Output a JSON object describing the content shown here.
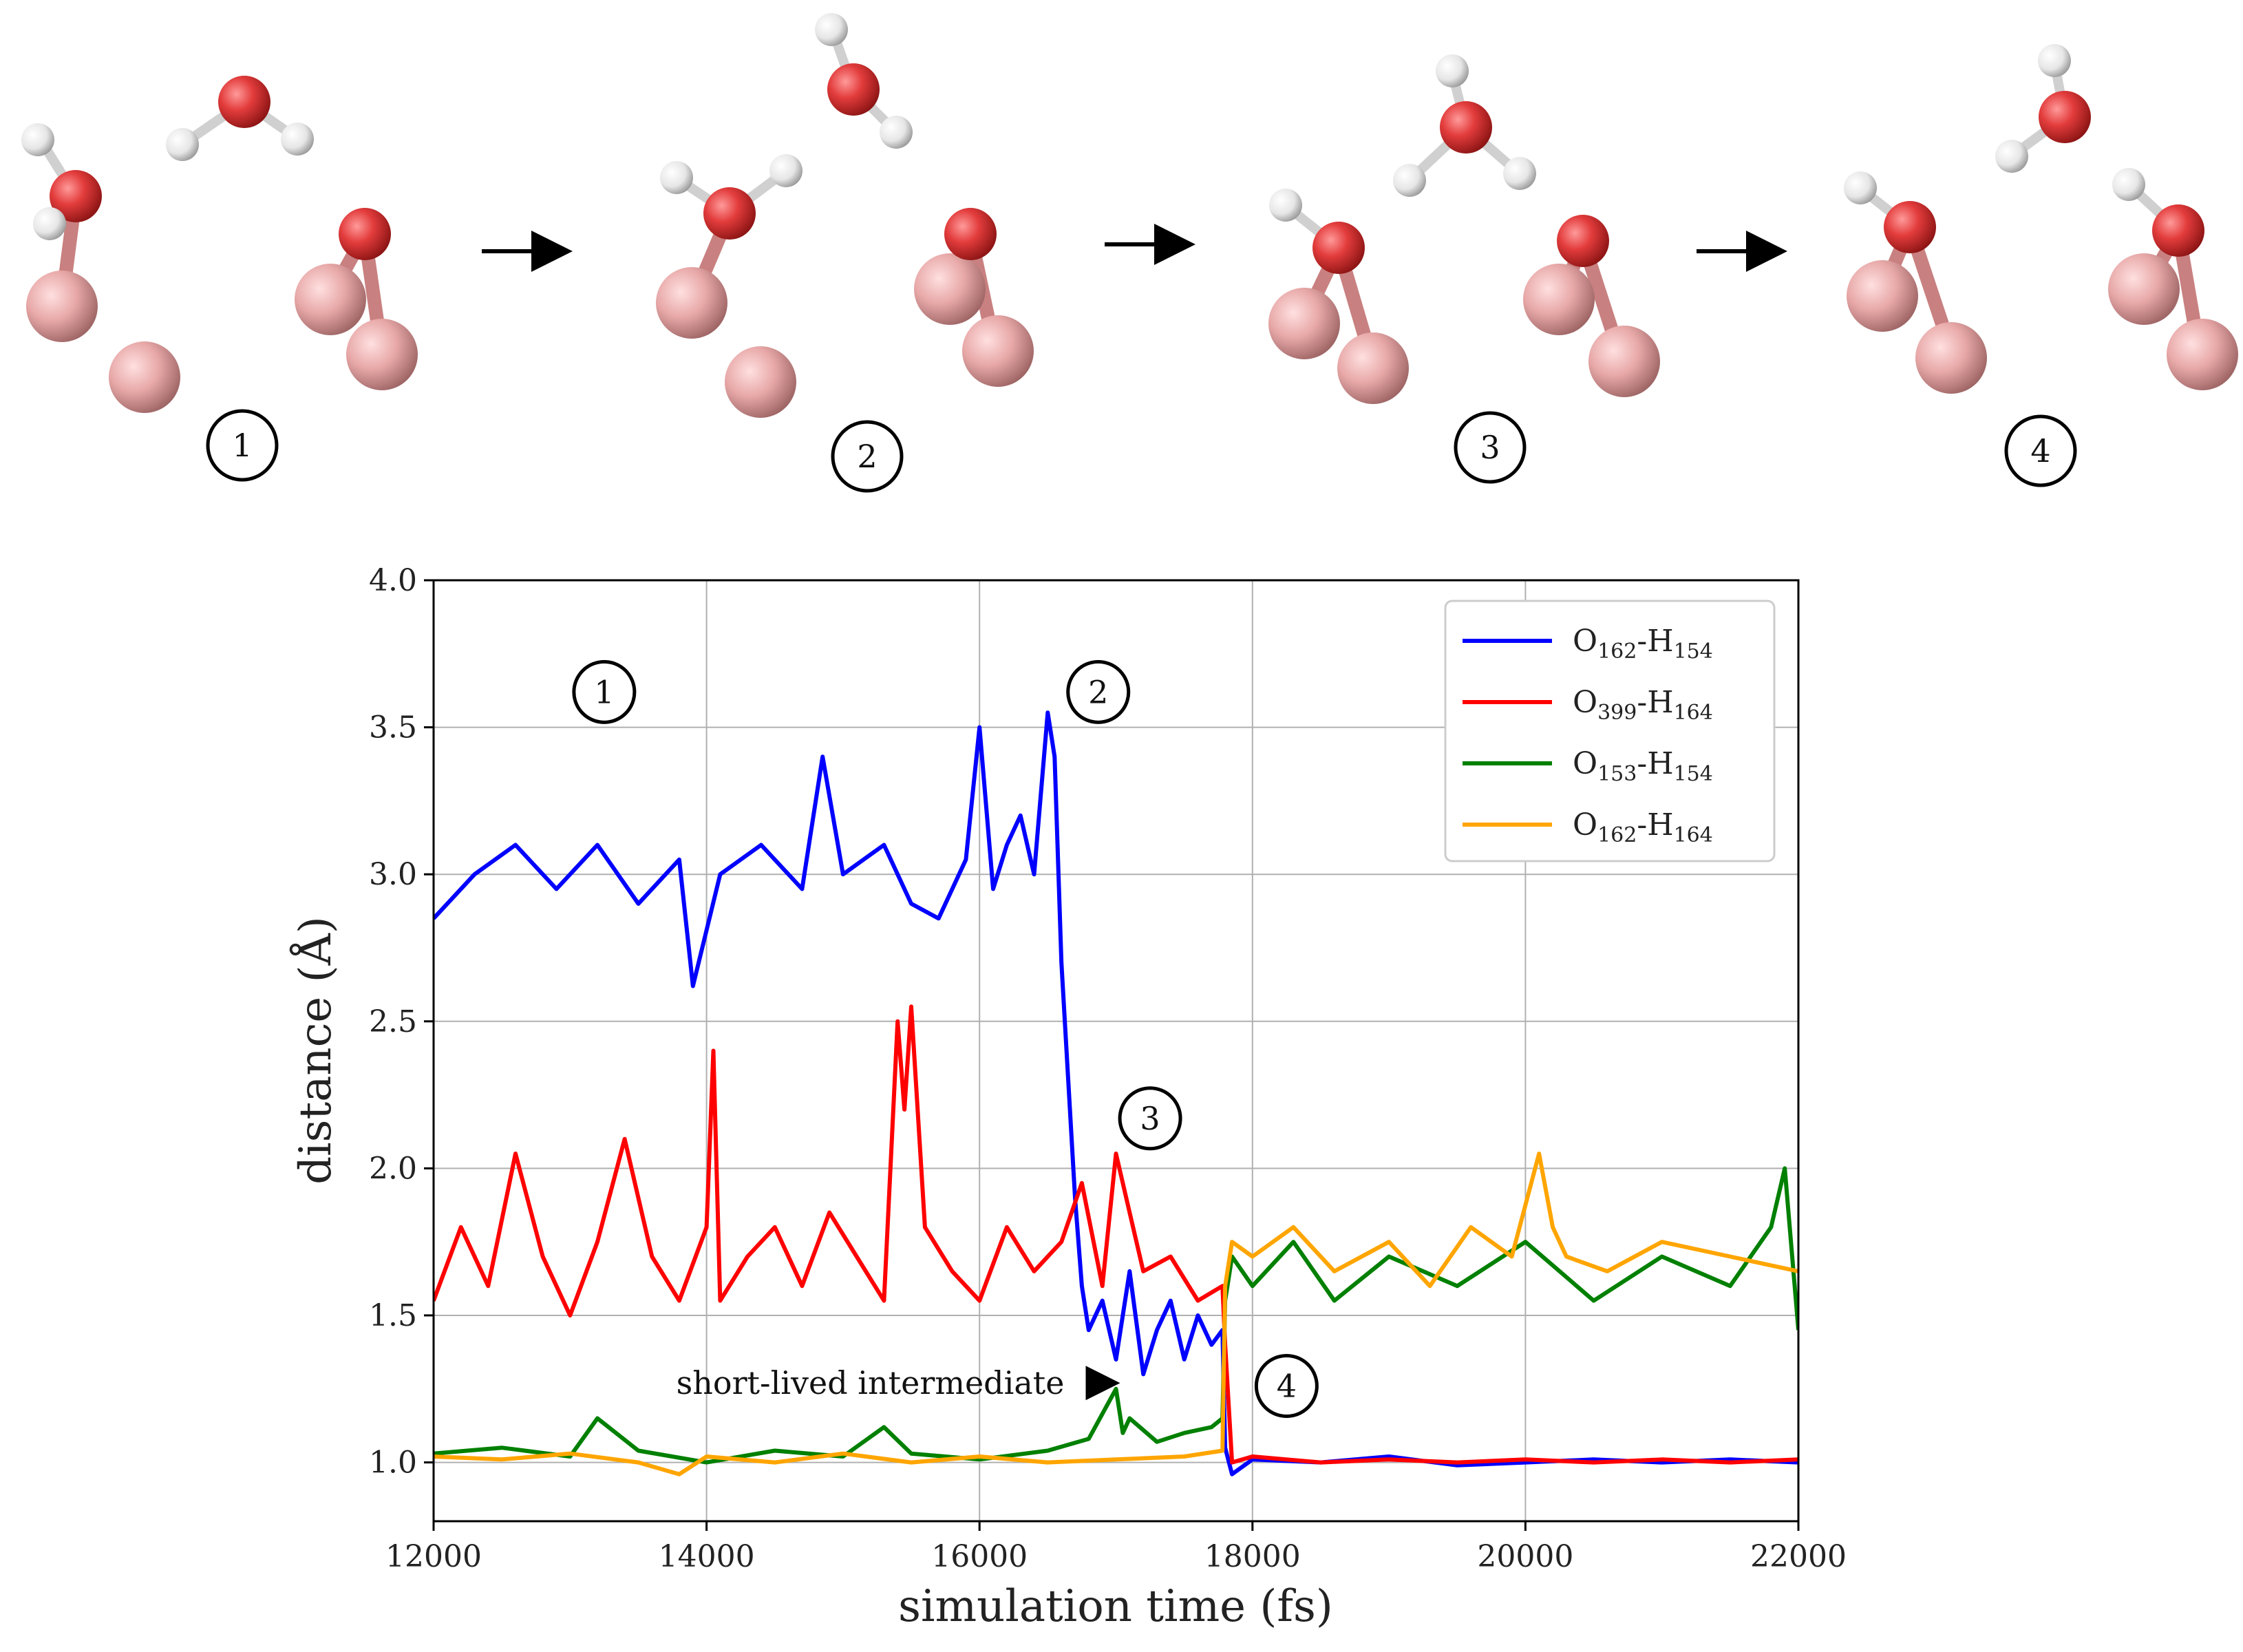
{
  "chart_data": {
    "type": "line",
    "xlabel": "simulation time (fs)",
    "ylabel": "distance (Å)",
    "xlim": [
      12000,
      22000
    ],
    "ylim": [
      0.8,
      4.0
    ],
    "xticks": [
      12000,
      14000,
      16000,
      18000,
      20000,
      22000
    ],
    "yticks": [
      1.0,
      1.5,
      2.0,
      2.5,
      3.0,
      3.5,
      4.0
    ],
    "xtick_labels": [
      "12000",
      "14000",
      "16000",
      "18000",
      "20000",
      "22000"
    ],
    "ytick_labels": [
      "1.0",
      "1.5",
      "2.0",
      "2.5",
      "3.0",
      "3.5",
      "4.0"
    ],
    "grid": true,
    "legend_position": "top-right",
    "series": [
      {
        "name": "O162-H154",
        "label_main": "O",
        "label_sub1": "162",
        "label_mid": "-H",
        "label_sub2": "154",
        "color": "#0000ff",
        "x": [
          12000,
          12300,
          12600,
          12900,
          13200,
          13500,
          13800,
          13900,
          14100,
          14400,
          14700,
          14850,
          15000,
          15300,
          15500,
          15700,
          15900,
          16000,
          16100,
          16200,
          16300,
          16400,
          16500,
          16550,
          16600,
          16650,
          16700,
          16750,
          16800,
          16900,
          17000,
          17100,
          17200,
          17300,
          17400,
          17500,
          17600,
          17700,
          17780,
          17800,
          17850,
          18000,
          18500,
          19000,
          19500,
          20000,
          20500,
          21000,
          21500,
          22000
        ],
        "y": [
          2.85,
          3.0,
          3.1,
          2.95,
          3.1,
          2.9,
          3.05,
          2.62,
          3.0,
          3.1,
          2.95,
          3.4,
          3.0,
          3.1,
          2.9,
          2.85,
          3.05,
          3.5,
          2.95,
          3.1,
          3.2,
          3.0,
          3.55,
          3.4,
          2.7,
          2.3,
          1.9,
          1.6,
          1.45,
          1.55,
          1.35,
          1.65,
          1.3,
          1.45,
          1.55,
          1.35,
          1.5,
          1.4,
          1.45,
          1.05,
          0.96,
          1.01,
          1.0,
          1.02,
          0.99,
          1.0,
          1.01,
          1.0,
          1.01,
          1.0
        ]
      },
      {
        "name": "O399-H164",
        "label_main": "O",
        "label_sub1": "399",
        "label_mid": "-H",
        "label_sub2": "164",
        "color": "#ff0000",
        "x": [
          12000,
          12200,
          12400,
          12600,
          12800,
          13000,
          13200,
          13400,
          13600,
          13800,
          14000,
          14050,
          14100,
          14300,
          14500,
          14700,
          14900,
          15100,
          15300,
          15400,
          15450,
          15500,
          15600,
          15800,
          16000,
          16200,
          16400,
          16600,
          16750,
          16900,
          17000,
          17100,
          17200,
          17400,
          17600,
          17780,
          17800,
          17850,
          18000,
          18500,
          19000,
          19500,
          20000,
          20500,
          21000,
          21500,
          22000
        ],
        "y": [
          1.55,
          1.8,
          1.6,
          2.05,
          1.7,
          1.5,
          1.75,
          2.1,
          1.7,
          1.55,
          1.8,
          2.4,
          1.55,
          1.7,
          1.8,
          1.6,
          1.85,
          1.7,
          1.55,
          2.5,
          2.2,
          2.55,
          1.8,
          1.65,
          1.55,
          1.8,
          1.65,
          1.75,
          1.95,
          1.6,
          2.05,
          1.85,
          1.65,
          1.7,
          1.55,
          1.6,
          1.4,
          1.0,
          1.02,
          1.0,
          1.01,
          1.0,
          1.01,
          1.0,
          1.01,
          1.0,
          1.01
        ]
      },
      {
        "name": "O153-H154",
        "label_main": "O",
        "label_sub1": "153",
        "label_mid": "-H",
        "label_sub2": "154",
        "color": "#008000",
        "x": [
          12000,
          12500,
          13000,
          13200,
          13500,
          14000,
          14500,
          15000,
          15300,
          15500,
          16000,
          16500,
          16800,
          17000,
          17050,
          17100,
          17300,
          17500,
          17700,
          17780,
          17800,
          17850,
          18000,
          18300,
          18600,
          19000,
          19500,
          20000,
          20500,
          21000,
          21500,
          21800,
          21900,
          22000
        ],
        "y": [
          1.03,
          1.05,
          1.02,
          1.15,
          1.04,
          1.0,
          1.04,
          1.02,
          1.12,
          1.03,
          1.01,
          1.04,
          1.08,
          1.25,
          1.1,
          1.15,
          1.07,
          1.1,
          1.12,
          1.15,
          1.55,
          1.7,
          1.6,
          1.75,
          1.55,
          1.7,
          1.6,
          1.75,
          1.55,
          1.7,
          1.6,
          1.8,
          2.0,
          1.45
        ]
      },
      {
        "name": "O162-H164",
        "label_main": "O",
        "label_sub1": "162",
        "label_mid": "-H",
        "label_sub2": "164",
        "color": "#ffa500",
        "x": [
          12000,
          12500,
          13000,
          13500,
          13800,
          14000,
          14500,
          15000,
          15500,
          16000,
          16500,
          17000,
          17500,
          17780,
          17800,
          17850,
          18000,
          18300,
          18600,
          19000,
          19300,
          19600,
          19900,
          20100,
          20200,
          20300,
          20600,
          21000,
          21500,
          22000
        ],
        "y": [
          1.02,
          1.01,
          1.03,
          1.0,
          0.96,
          1.02,
          1.0,
          1.03,
          1.0,
          1.02,
          1.0,
          1.01,
          1.02,
          1.04,
          1.6,
          1.75,
          1.7,
          1.8,
          1.65,
          1.75,
          1.6,
          1.8,
          1.7,
          2.05,
          1.8,
          1.7,
          1.65,
          1.75,
          1.7,
          1.65
        ]
      }
    ],
    "markers": [
      {
        "label": "1",
        "x": 13250,
        "y": 3.62
      },
      {
        "label": "2",
        "x": 16870,
        "y": 3.62
      },
      {
        "label": "3",
        "x": 17250,
        "y": 2.17
      },
      {
        "label": "4",
        "x": 18250,
        "y": 1.26
      }
    ],
    "annotations": [
      {
        "text": "short-lived intermediate",
        "x": 15200,
        "y": 1.27,
        "arrow_to_x": 17000,
        "arrow_to_y": 1.27
      }
    ]
  },
  "snapshots": [
    {
      "label": "1"
    },
    {
      "label": "2"
    },
    {
      "label": "3"
    },
    {
      "label": "4"
    }
  ]
}
